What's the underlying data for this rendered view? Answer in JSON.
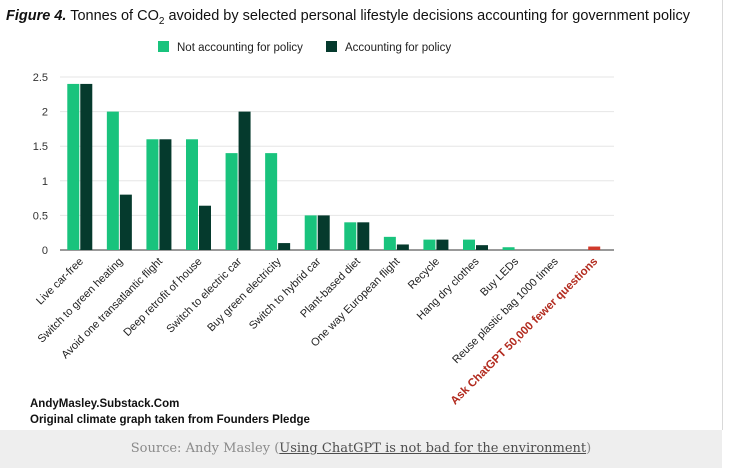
{
  "title": {
    "figure_label": "Figure 4.",
    "text_before_sub": " Tonnes of CO",
    "subscript": "2",
    "text_after_sub": " avoided by selected personal lifestyle decisions accounting for government policy"
  },
  "credit": {
    "line1": "AndyMasley.Substack.Com",
    "line2": "Original climate graph taken from Founders Pledge"
  },
  "caption": {
    "prefix": "Source:",
    "author": " Andy Masley (",
    "link_text": "Using ChatGPT is not bad for the environment",
    "suffix": ")"
  },
  "colors": {
    "not_accounting": "#19c37d",
    "accounting": "#053a2d",
    "highlight": "#d0392b",
    "highlight_label": "#b22a1e"
  },
  "chart_data": {
    "type": "bar",
    "categories": [
      "Live car-free",
      "Switch to green heating",
      "Avoid one transatlantic flight",
      "Deep retrofit of house",
      "Switch to electric car",
      "Buy green electricity",
      "Switch to hybrid car",
      "Plant-based diet",
      "One way European flight",
      "Recycle",
      "Hang dry clothes",
      "Buy LEDs",
      "Reuse plastic bag 1000 times",
      "Ask ChatGPT 50,000 fewer questions"
    ],
    "series": [
      {
        "name": "Not accounting for policy",
        "values": [
          2.4,
          2.0,
          1.6,
          1.6,
          1.4,
          1.4,
          0.5,
          0.4,
          0.19,
          0.15,
          0.15,
          0.04,
          0.0,
          0.0
        ]
      },
      {
        "name": "Accounting for policy",
        "values": [
          2.4,
          0.8,
          1.6,
          0.64,
          2.0,
          0.1,
          0.5,
          0.4,
          0.08,
          0.15,
          0.07,
          0.0,
          0.0,
          0.0
        ]
      }
    ],
    "highlight": {
      "category": "Ask ChatGPT 50,000 fewer questions",
      "value": 0.05
    },
    "yticks": [
      "0",
      "0.5",
      "1",
      "1.5",
      "2",
      "2.5"
    ],
    "ylim": [
      0,
      2.5
    ],
    "legend_position": "top",
    "grid": true
  }
}
